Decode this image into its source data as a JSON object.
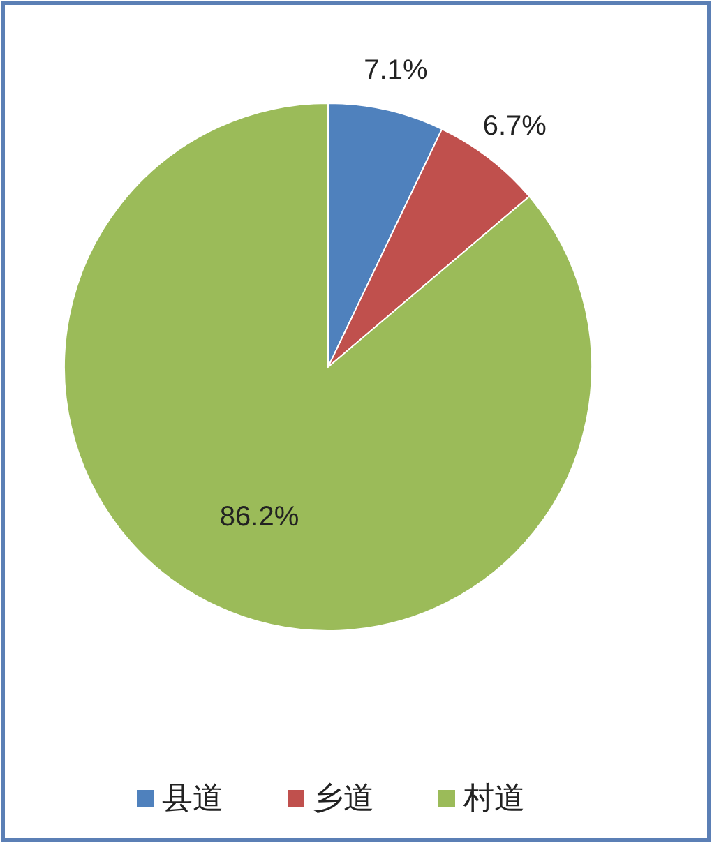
{
  "chart_data": {
    "type": "pie",
    "categories": [
      "县道",
      "乡道",
      "村道"
    ],
    "values": [
      7.1,
      6.7,
      86.2
    ],
    "value_labels": [
      "7.1%",
      "6.7%",
      "86.2%"
    ],
    "colors": [
      "#4f81bd",
      "#c0504d",
      "#9bbb59"
    ],
    "legend": "bottom"
  }
}
